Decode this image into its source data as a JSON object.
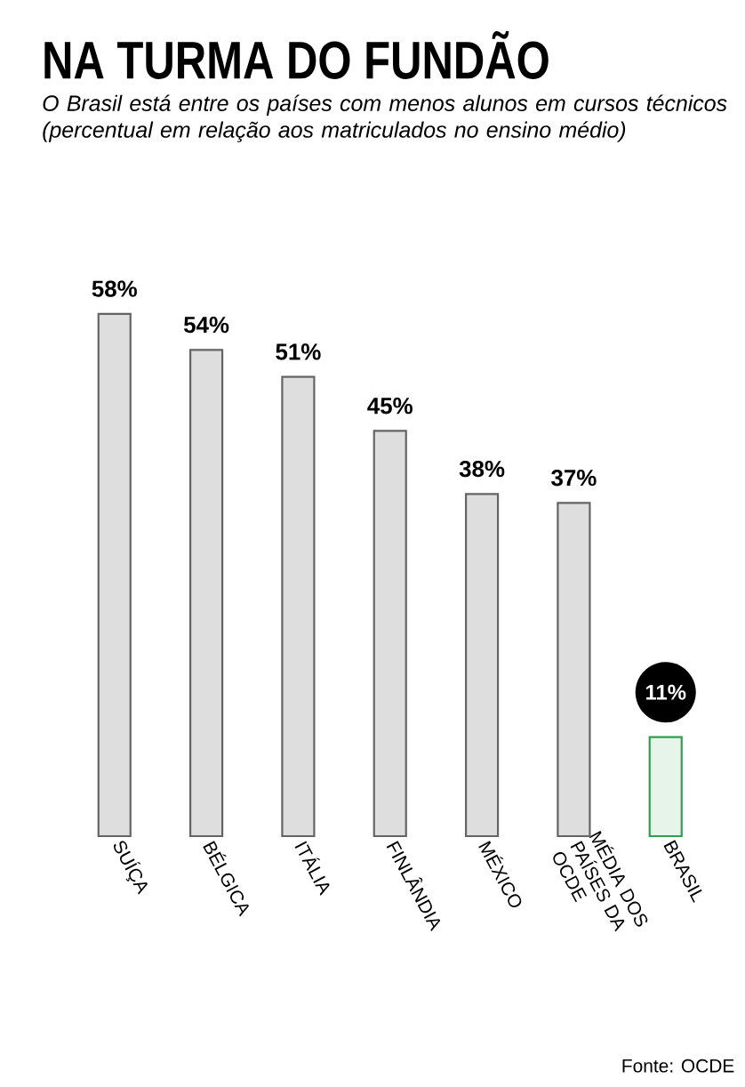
{
  "chart_data": {
    "type": "bar",
    "title": "NA TURMA DO FUNDÃO",
    "subtitle": "O Brasil está entre os países com menos alunos em cursos técnicos (percentual em relação aos matriculados no ensino médio)",
    "categories": [
      "SUÍÇA",
      "BÉLGICA",
      "ITÁLIA",
      "FINLÂNDIA",
      "MÉXICO",
      "MÉDIA DOS PAÍSES DA OCDE",
      "BRASIL"
    ],
    "values": [
      58,
      54,
      51,
      45,
      38,
      37,
      11
    ],
    "value_labels": [
      "58%",
      "54%",
      "51%",
      "45%",
      "38%",
      "37%",
      "11%"
    ],
    "data_labels": true,
    "colors": [
      "#dedede",
      "#dedede",
      "#dedede",
      "#dedede",
      "#dedede",
      "#dedede",
      "#e6f4e9"
    ],
    "annotations": [
      "Fonte: OCDE"
    ]
  }
}
